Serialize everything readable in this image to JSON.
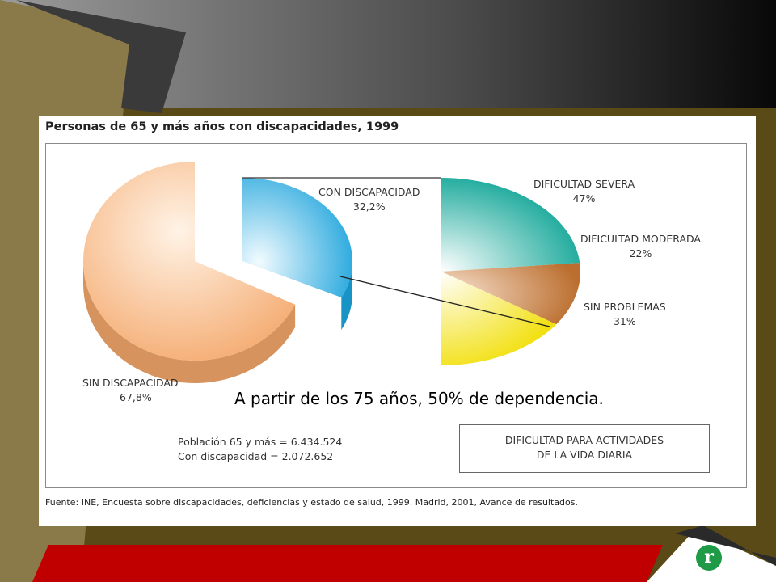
{
  "slide": {
    "headline": "A partir de los 75 años, 50% de dependencia.",
    "logo_letter": "r"
  },
  "figure": {
    "title": "Personas de 65 y más años con discapacidades, 1999",
    "stats_line1": "Población 65 y más = 6.434.524",
    "stats_line2": "Con discapacidad = 2.072.652",
    "box_line1": "DIFICULTAD PARA ACTIVIDADES",
    "box_line2": "DE LA VIDA DIARIA",
    "source": "Fuente: INE, Encuesta sobre discapacidades, deficiencias y estado de salud, 1999. Madrid, 2001, Avance de resultados."
  },
  "chart_data": [
    {
      "type": "pie",
      "slices": [
        {
          "name": "SIN DISCAPACIDAD",
          "value_label": "67,8%",
          "value": 67.8,
          "color": "#f4a76a"
        },
        {
          "name": "CON DISCAPACIDAD",
          "value_label": "32,2%",
          "value": 32.2,
          "color": "#1aa3dc"
        }
      ]
    },
    {
      "type": "pie",
      "slices": [
        {
          "name": "DIFICULTAD SEVERA",
          "value_label": "47%",
          "value": 47,
          "color": "#17a99a"
        },
        {
          "name": "DIFICULTAD MODERADA",
          "value_label": "22%",
          "value": 22,
          "color": "#c07838"
        },
        {
          "name": "SIN PROBLEMAS",
          "value_label": "31%",
          "value": 31,
          "color": "#f2e010"
        }
      ]
    }
  ],
  "colors": {
    "panel": "#5a4a18",
    "left_bar": "#8a7a4a",
    "red_bar": "#c00000"
  }
}
